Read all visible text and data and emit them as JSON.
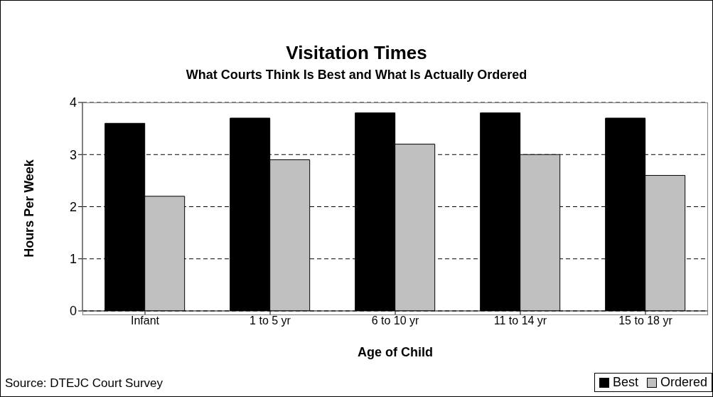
{
  "chart_data": {
    "type": "bar",
    "title": "Visitation Times",
    "subtitle": "What Courts Think Is Best and What Is Actually Ordered",
    "xlabel": "Age of Child",
    "ylabel": "Hours Per Week",
    "categories": [
      "Infant",
      "1 to 5 yr",
      "6 to 10 yr",
      "11 to 14 yr",
      "15 to 18 yr"
    ],
    "series": [
      {
        "name": "Best",
        "color": "#000000",
        "values": [
          3.6,
          3.7,
          3.8,
          3.8,
          3.7
        ]
      },
      {
        "name": "Ordered",
        "color": "#c0c0c0",
        "values": [
          2.2,
          2.9,
          3.2,
          3.0,
          2.6
        ]
      }
    ],
    "ylim": [
      0,
      4
    ],
    "yticks": [
      0,
      1,
      2,
      3,
      4
    ],
    "grid": "y",
    "legend": "bottom right",
    "annotations": [
      "Source: DTEJC Court Survey"
    ]
  }
}
